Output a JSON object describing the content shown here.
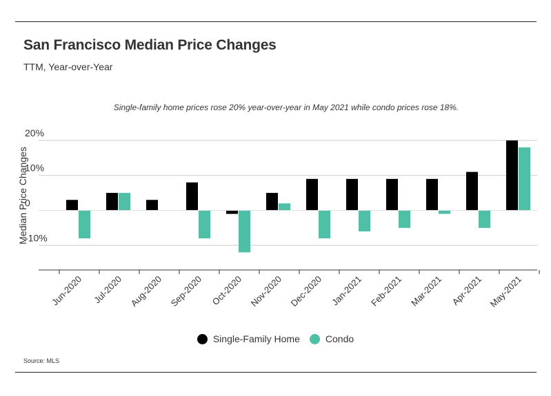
{
  "title": "San Francisco Median Price Changes",
  "subtitle": "TTM, Year-over-Year",
  "source": "Source:  MLS",
  "colors": {
    "single_family": "#000000",
    "condo": "#4fbfa5",
    "grid": "#cccccc",
    "axis": "#333333"
  },
  "chart_data": {
    "type": "bar",
    "title": "San Francisco Median Price Changes",
    "subtitle": "TTM, Year-over-Year",
    "annotation": "Single-family home prices rose 20% year-over-year in May 2021 while condo prices rose 18%.",
    "xlabel": "",
    "ylabel": "Median Price Changes",
    "ylim": [
      -17,
      20
    ],
    "yticks": [
      20,
      10,
      0,
      -10
    ],
    "ytick_labels": [
      "20%",
      "10%",
      "0",
      "-10%"
    ],
    "grid": true,
    "legend": "bottom",
    "categories": [
      "Jun-2020",
      "Jul-2020",
      "Aug-2020",
      "Sep-2020",
      "Oct-2020",
      "Nov-2020",
      "Dec-2020",
      "Jan-2021",
      "Feb-2021",
      "Mar-2021",
      "Apr-2021",
      "May-2021"
    ],
    "series": [
      {
        "name": "Single-Family Home",
        "values": [
          3,
          5,
          3,
          8,
          -1,
          5,
          9,
          9,
          9,
          9,
          11,
          20
        ]
      },
      {
        "name": "Condo",
        "values": [
          -8,
          5,
          0,
          -8,
          -12,
          2,
          -8,
          -6,
          -5,
          -1,
          -5,
          18
        ]
      }
    ]
  }
}
